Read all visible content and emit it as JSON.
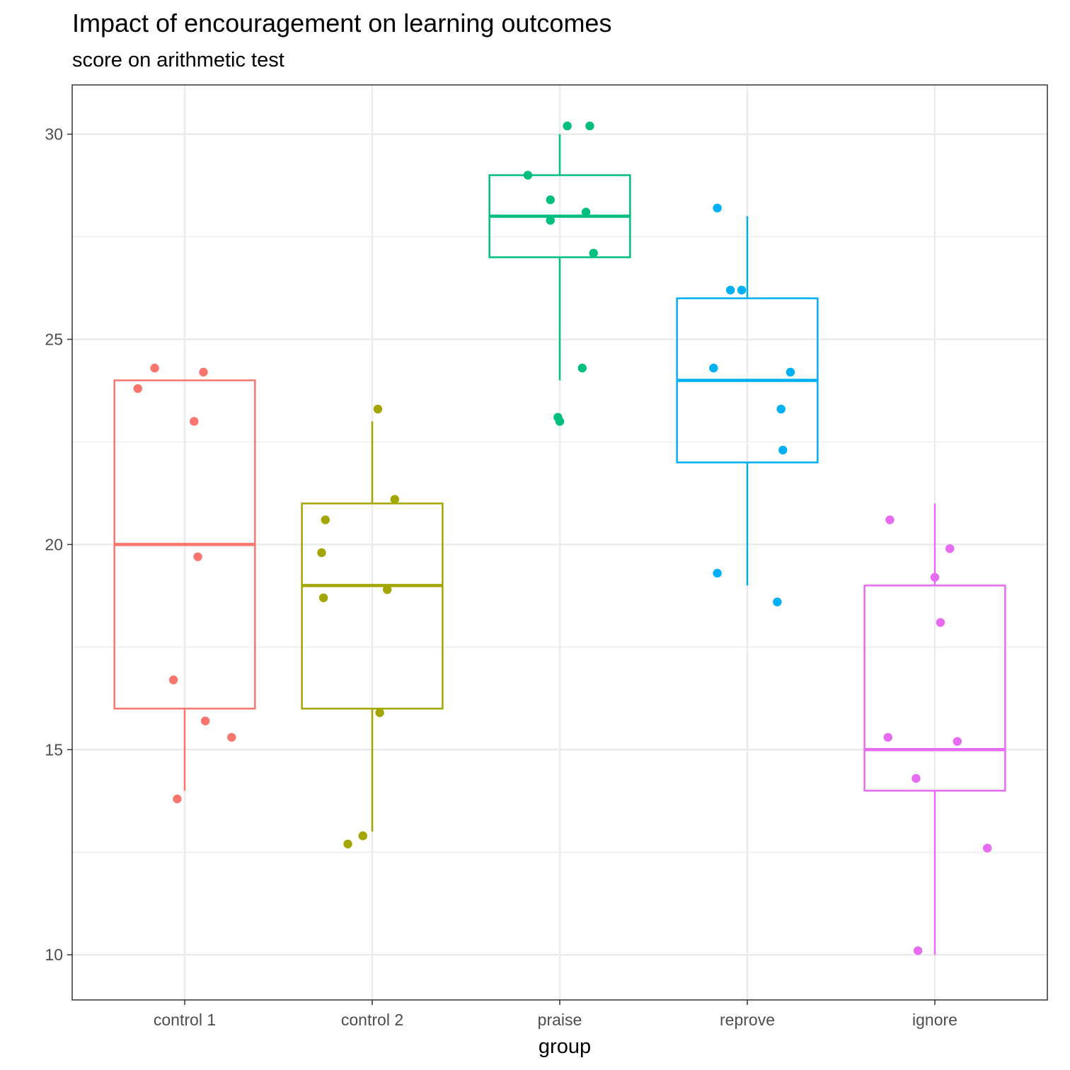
{
  "chart_data": {
    "type": "box",
    "title": "Impact of encouragement on learning outcomes",
    "subtitle": "score on arithmetic test",
    "xlabel": "group",
    "ylabel": "",
    "ylim": [
      8.9,
      31.2
    ],
    "yticks": [
      10,
      15,
      20,
      25,
      30
    ],
    "grid": true,
    "categories": [
      "control 1",
      "control 2",
      "praise",
      "reprove",
      "ignore"
    ],
    "colors": [
      "#F8766D",
      "#A3A500",
      "#00BF7D",
      "#00B0F6",
      "#E76BF3"
    ],
    "boxes": [
      {
        "name": "control 1",
        "whisker_low": 14,
        "q1": 16,
        "median": 20,
        "q3": 24,
        "whisker_high": 24
      },
      {
        "name": "control 2",
        "whisker_low": 13,
        "q1": 16,
        "median": 19,
        "q3": 21,
        "whisker_high": 23
      },
      {
        "name": "praise",
        "whisker_low": 24,
        "q1": 27,
        "median": 28,
        "q3": 29,
        "whisker_high": 30
      },
      {
        "name": "reprove",
        "whisker_low": 19,
        "q1": 22,
        "median": 24,
        "q3": 26,
        "whisker_high": 28
      },
      {
        "name": "ignore",
        "whisker_low": 10,
        "q1": 14,
        "median": 15,
        "q3": 19,
        "whisker_high": 21
      }
    ],
    "points": [
      [
        {
          "jitter": -0.16,
          "y": 24.3
        },
        {
          "jitter": 0.1,
          "y": 24.2
        },
        {
          "jitter": -0.25,
          "y": 23.8
        },
        {
          "jitter": 0.05,
          "y": 23.0
        },
        {
          "jitter": 0.07,
          "y": 19.7
        },
        {
          "jitter": -0.06,
          "y": 16.7
        },
        {
          "jitter": 0.11,
          "y": 15.7
        },
        {
          "jitter": 0.25,
          "y": 15.3
        },
        {
          "jitter": -0.04,
          "y": 13.8
        }
      ],
      [
        {
          "jitter": 0.03,
          "y": 23.3
        },
        {
          "jitter": 0.12,
          "y": 21.1
        },
        {
          "jitter": -0.25,
          "y": 20.6
        },
        {
          "jitter": -0.27,
          "y": 19.8
        },
        {
          "jitter": -0.26,
          "y": 18.7
        },
        {
          "jitter": 0.08,
          "y": 18.9
        },
        {
          "jitter": 0.04,
          "y": 15.9
        },
        {
          "jitter": -0.05,
          "y": 12.9
        },
        {
          "jitter": -0.13,
          "y": 12.7
        }
      ],
      [
        {
          "jitter": 0.04,
          "y": 30.2
        },
        {
          "jitter": 0.16,
          "y": 30.2
        },
        {
          "jitter": -0.17,
          "y": 29.0
        },
        {
          "jitter": -0.05,
          "y": 28.4
        },
        {
          "jitter": 0.14,
          "y": 28.1
        },
        {
          "jitter": -0.05,
          "y": 27.9
        },
        {
          "jitter": 0.18,
          "y": 27.1
        },
        {
          "jitter": 0.12,
          "y": 24.3
        },
        {
          "jitter": -0.01,
          "y": 23.1
        },
        {
          "jitter": 0.0,
          "y": 23.0
        }
      ],
      [
        {
          "jitter": -0.16,
          "y": 28.2
        },
        {
          "jitter": -0.09,
          "y": 26.2
        },
        {
          "jitter": -0.03,
          "y": 26.2
        },
        {
          "jitter": -0.18,
          "y": 24.3
        },
        {
          "jitter": 0.23,
          "y": 24.2
        },
        {
          "jitter": 0.18,
          "y": 23.3
        },
        {
          "jitter": 0.19,
          "y": 22.3
        },
        {
          "jitter": -0.16,
          "y": 19.3
        },
        {
          "jitter": 0.16,
          "y": 18.6
        }
      ],
      [
        {
          "jitter": -0.24,
          "y": 20.6
        },
        {
          "jitter": 0.08,
          "y": 19.9
        },
        {
          "jitter": 0.0,
          "y": 19.2
        },
        {
          "jitter": 0.03,
          "y": 18.1
        },
        {
          "jitter": -0.25,
          "y": 15.3
        },
        {
          "jitter": 0.12,
          "y": 15.2
        },
        {
          "jitter": -0.1,
          "y": 14.3
        },
        {
          "jitter": 0.28,
          "y": 12.6
        },
        {
          "jitter": -0.09,
          "y": 10.1
        }
      ]
    ]
  }
}
